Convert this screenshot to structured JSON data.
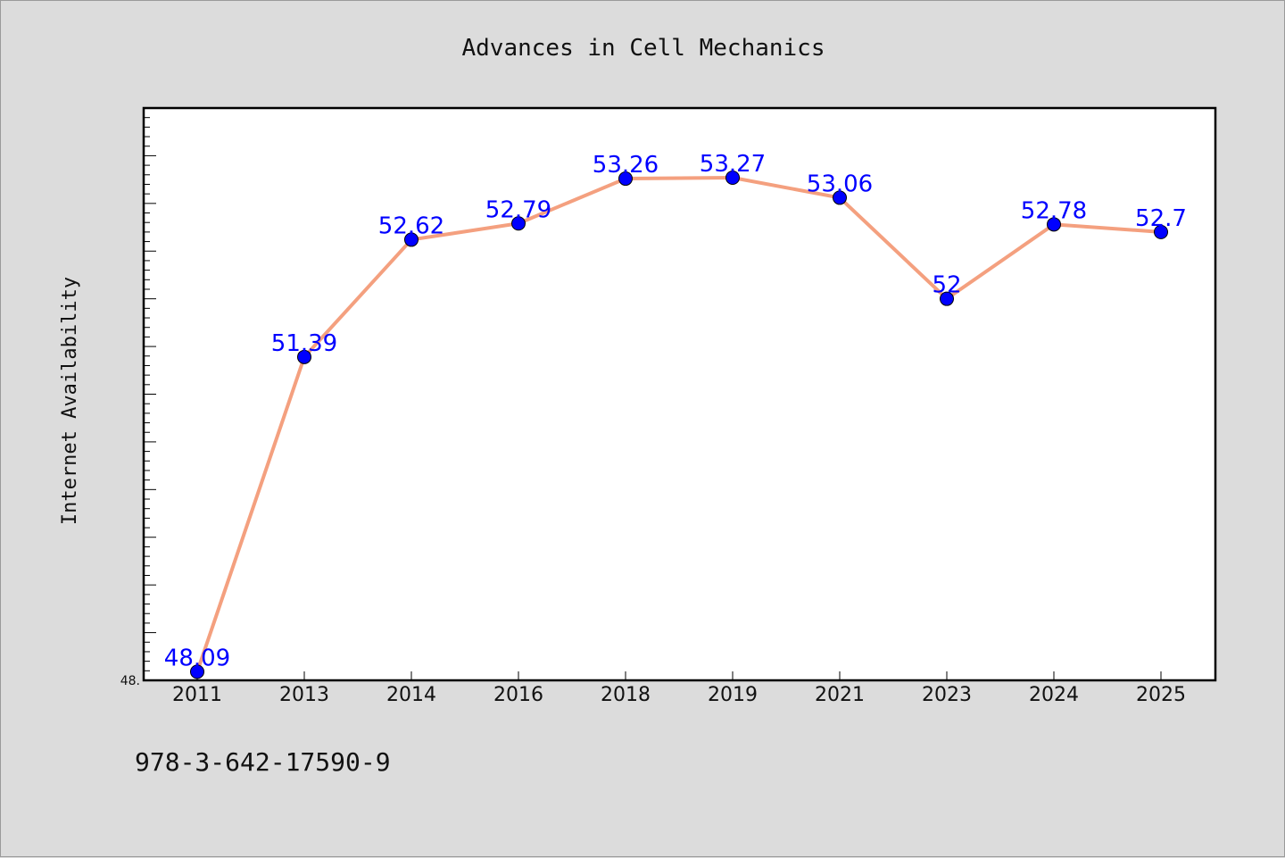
{
  "chart_data": {
    "type": "line",
    "title": "Advances in Cell Mechanics",
    "xlabel": "",
    "ylabel": "Internet Availability",
    "categories": [
      "2011",
      "2013",
      "2014",
      "2016",
      "2018",
      "2019",
      "2021",
      "2023",
      "2024",
      "2025"
    ],
    "series": [
      {
        "values": [
          48.09,
          51.39,
          52.62,
          52.79,
          53.26,
          53.27,
          53.06,
          52,
          52.78,
          52.7
        ]
      }
    ],
    "data_labels": [
      "48.09",
      "51.39",
      "52.62",
      "52.79",
      "53.26",
      "53.27",
      "53.06",
      "52",
      "52.78",
      "52.7"
    ],
    "ylim": [
      48.0,
      54.0
    ],
    "y_tick_labels": [
      "48."
    ],
    "grid": false,
    "legend": "none",
    "colors": {
      "line": "#f4a07f",
      "marker": "#0000ff",
      "label": "#0000ff",
      "plot_bg": "#ffffff",
      "page_bg": "#dcdcdc"
    }
  },
  "footer": {
    "isbn": "978-3-642-17590-9"
  }
}
